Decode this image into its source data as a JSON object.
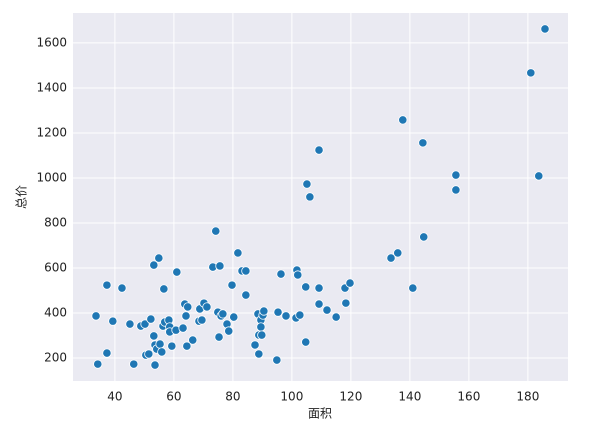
{
  "chart_data": {
    "type": "scatter",
    "x_label": "面积",
    "y_label": "总价",
    "color": "#1f77b4",
    "background": "#eaeaf2",
    "grid": true,
    "x": [
      33.6,
      34.2,
      37.3,
      37.3,
      39.3,
      42.4,
      45.1,
      46.4,
      48.8,
      50.2,
      50.5,
      51.5,
      52.2,
      53.2,
      53.2,
      53.6,
      53.6,
      54.2,
      54.9,
      55.3,
      55.9,
      56.3,
      56.6,
      56.9,
      58.3,
      58.6,
      58.6,
      59.3,
      60.7,
      61.0,
      63.1,
      63.7,
      64.1,
      64.4,
      64.7,
      66.4,
      68.5,
      68.8,
      69.5,
      70.2,
      71.2,
      73.2,
      74.2,
      74.9,
      75.3,
      75.6,
      76.0,
      76.6,
      78.0,
      78.6,
      79.7,
      80.3,
      81.7,
      83.1,
      84.4,
      84.4,
      87.5,
      88.5,
      88.8,
      88.8,
      89.5,
      89.5,
      89.8,
      90.2,
      90.5,
      94.9,
      95.3,
      96.3,
      98.0,
      101.4,
      101.7,
      102.0,
      102.7,
      104.7,
      104.7,
      105.1,
      106.1,
      109.2,
      109.2,
      109.2,
      111.9,
      115.0,
      118.0,
      118.3,
      119.7,
      133.6,
      135.9,
      137.6,
      141.0,
      144.4,
      144.7,
      155.6,
      155.6,
      181.0,
      183.7,
      185.8
    ],
    "y": [
      387,
      173,
      524,
      222,
      364,
      511,
      351,
      173,
      342,
      351,
      213,
      218,
      373,
      613,
      298,
      258,
      169,
      240,
      644,
      262,
      227,
      342,
      507,
      360,
      369,
      338,
      316,
      253,
      324,
      582,
      333,
      440,
      387,
      253,
      427,
      280,
      364,
      418,
      369,
      444,
      427,
      604,
      764,
      404,
      293,
      609,
      387,
      396,
      351,
      320,
      524,
      382,
      667,
      587,
      587,
      480,
      258,
      396,
      302,
      218,
      369,
      338,
      302,
      391,
      409,
      191,
      404,
      573,
      387,
      378,
      591,
      569,
      391,
      271,
      516,
      973,
      916,
      511,
      440,
      1124,
      413,
      382,
      511,
      444,
      533,
      644,
      667,
      1258,
      511,
      1156,
      738,
      1013,
      947,
      1467,
      1009,
      1662
    ],
    "xlim": [
      25.8,
      193.6
    ],
    "ylim": [
      98,
      1733
    ],
    "xticks": [
      40,
      60,
      80,
      100,
      120,
      140,
      160,
      180
    ],
    "yticks": [
      200,
      400,
      600,
      800,
      1000,
      1200,
      1400,
      1600
    ]
  }
}
